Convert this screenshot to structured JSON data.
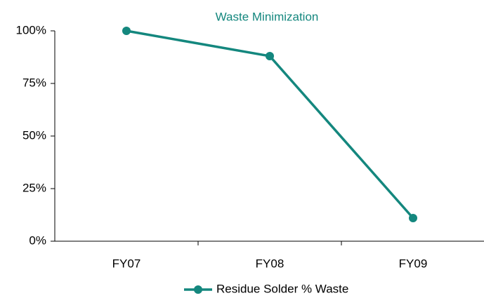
{
  "chart_data": {
    "type": "line",
    "title": "Waste Minimization",
    "categories": [
      "FY07",
      "FY08",
      "FY09"
    ],
    "series": [
      {
        "name": "Residue Solder % Waste",
        "color": "#14877e",
        "values": [
          100,
          88,
          11
        ]
      }
    ],
    "ylim": [
      0,
      100
    ],
    "yticks": [
      {
        "value": 0,
        "label": "0%"
      },
      {
        "value": 25,
        "label": "25%"
      },
      {
        "value": 50,
        "label": "50%"
      },
      {
        "value": 75,
        "label": "75%"
      },
      {
        "value": 100,
        "label": "100%"
      }
    ],
    "grid": false,
    "legend": "bottom"
  }
}
